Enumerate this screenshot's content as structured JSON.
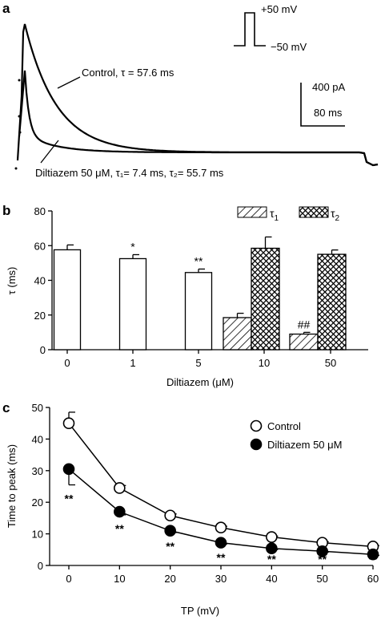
{
  "chart_data": [
    {
      "panel": "a",
      "type": "line",
      "protocol": {
        "high_label": "+50 mV",
        "low_label": "−50 mV"
      },
      "scale_bar": {
        "current": "400 pA",
        "time": "80 ms"
      },
      "series": [
        {
          "name": "Control",
          "label": "Control, τ = 57.6 ms",
          "tau_ms": [
            57.6
          ]
        },
        {
          "name": "Diltiazem 50 μM",
          "label": "Diltiazem 50 μM,  τ₁= 7.4 ms,  τ₂= 55.7 ms",
          "tau_ms": [
            7.4,
            55.7
          ]
        }
      ]
    },
    {
      "panel": "b",
      "type": "bar",
      "xlabel": "Diltiazem (μM)",
      "ylabel": "τ (ms)",
      "ylim": [
        0,
        80
      ],
      "yticks": [
        0,
        20,
        40,
        60,
        80
      ],
      "categories": [
        "0",
        "1",
        "5",
        "10",
        "50"
      ],
      "series": [
        {
          "name": "τ",
          "values": [
            57.6,
            52.5,
            44.5,
            null,
            null
          ],
          "errors": [
            2.8,
            2.3,
            2.0,
            null,
            null
          ],
          "fill": "open"
        },
        {
          "name": "τ1",
          "values": [
            null,
            null,
            null,
            18.5,
            9.0
          ],
          "errors": [
            null,
            null,
            null,
            2.5,
            1.0
          ],
          "fill": "hatched"
        },
        {
          "name": "τ2",
          "values": [
            null,
            null,
            null,
            58.5,
            55.0
          ],
          "errors": [
            null,
            null,
            null,
            6.5,
            2.5
          ],
          "fill": "cross-hatched"
        }
      ],
      "legend": {
        "items": [
          "τ",
          "τ"
        ],
        "subscripts": [
          "1",
          "2"
        ],
        "position": "top-right"
      },
      "annotations": [
        {
          "category": "1",
          "text": "*"
        },
        {
          "category": "5",
          "text": "**"
        },
        {
          "category": "50",
          "text": "##"
        }
      ]
    },
    {
      "panel": "c",
      "type": "line",
      "xlabel": "TP (mV)",
      "ylabel": "Time to peak (ms)",
      "xlim": [
        0,
        60
      ],
      "ylim": [
        0,
        50
      ],
      "xticks": [
        0,
        10,
        20,
        30,
        40,
        50,
        60
      ],
      "yticks": [
        0,
        10,
        20,
        30,
        40,
        50
      ],
      "x": [
        0,
        10,
        20,
        30,
        40,
        50,
        60
      ],
      "series": [
        {
          "name": "Control",
          "marker": "open-circle",
          "values": [
            45.0,
            24.5,
            15.8,
            12.0,
            9.0,
            7.2,
            6.0
          ],
          "errors": [
            3.5,
            0.8,
            0.5,
            0.4,
            0.3,
            0.3,
            0.3
          ]
        },
        {
          "name": "Diltiazem 50 μM",
          "marker": "filled-circle",
          "values": [
            30.5,
            17.0,
            11.0,
            7.2,
            5.4,
            4.5,
            3.5
          ],
          "errors": [
            5.0,
            1.0,
            0.6,
            0.4,
            0.4,
            0.3,
            0.3
          ]
        }
      ],
      "legend_position": "top-right",
      "annotations": [
        {
          "x": 0,
          "text": "**"
        },
        {
          "x": 10,
          "text": "**"
        },
        {
          "x": 20,
          "text": "**"
        },
        {
          "x": 30,
          "text": "**"
        },
        {
          "x": 40,
          "text": "**"
        },
        {
          "x": 50,
          "text": "**"
        },
        {
          "x": 60,
          "text": "**"
        }
      ]
    }
  ]
}
